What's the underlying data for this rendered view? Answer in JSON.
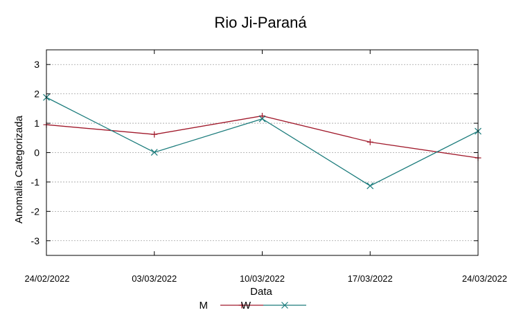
{
  "chart_data": {
    "type": "line",
    "title": "Rio Ji-Paraná",
    "xlabel": "Data",
    "ylabel": "Anomalia Categorizada",
    "x": [
      "24/02/2022",
      "03/03/2022",
      "10/03/2022",
      "17/03/2022",
      "24/03/2022"
    ],
    "xlim": [
      "24/02/2022",
      "24/03/2022"
    ],
    "ylim": [
      -3.5,
      3.5
    ],
    "yticks": [
      -3,
      -2,
      -1,
      0,
      1,
      2,
      3
    ],
    "grid": true,
    "legend": "bottom-center",
    "series": [
      {
        "name": "M",
        "color": "#a0182a",
        "marker": "plus",
        "values": [
          0.95,
          0.62,
          1.25,
          0.36,
          -0.18
        ]
      },
      {
        "name": "W",
        "color": "#1a7b7b",
        "marker": "cross",
        "values": [
          1.88,
          0.01,
          1.15,
          -1.13,
          0.73
        ]
      }
    ]
  }
}
